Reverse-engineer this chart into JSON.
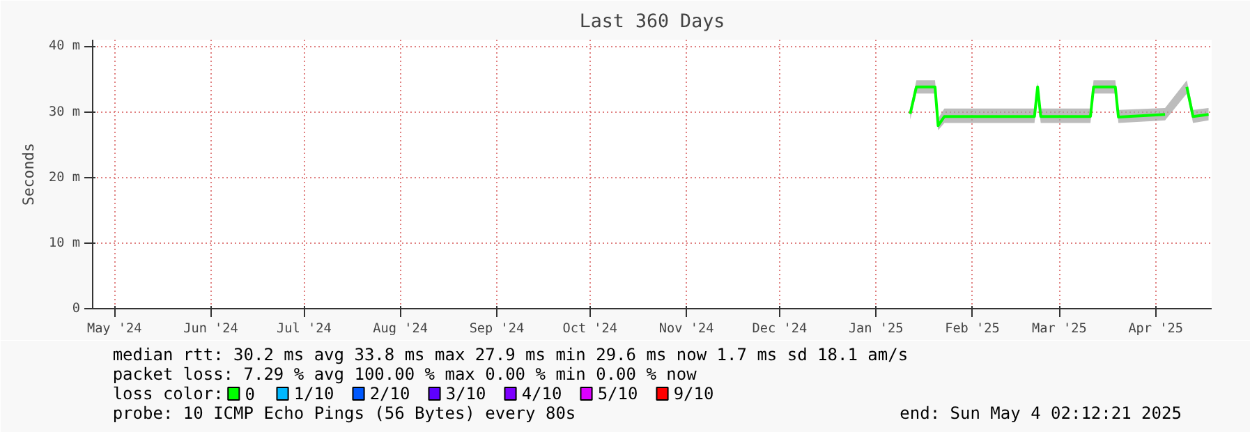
{
  "chart_data": {
    "type": "line",
    "title": "Last 360 Days",
    "ylabel": "Seconds",
    "x": [
      "2025-01-27",
      "2025-01-29",
      "2025-02-04",
      "2025-02-05",
      "2025-02-07",
      "2025-02-24",
      "2025-02-26",
      "2025-03-08",
      "2025-03-09",
      "2025-03-10",
      "2025-03-26",
      "2025-03-27",
      "2025-04-03",
      "2025-04-04",
      "2025-04-19",
      "2025-04-22",
      "2025-04-26",
      "2025-04-28",
      "2025-05-03"
    ],
    "series": [
      {
        "name": "0",
        "color": "#00ff00",
        "values": [
          29.7,
          33.8,
          33.8,
          27.9,
          29.3,
          29.3,
          29.3,
          29.3,
          33.8,
          29.3,
          29.3,
          33.8,
          33.8,
          29.2,
          29.6,
          null,
          33.8,
          29.3,
          29.6
        ],
        "lower": [
          28.8,
          32.8,
          32.8,
          27.2,
          28.3,
          28.3,
          28.3,
          28.3,
          32.5,
          28.3,
          28.3,
          32.8,
          32.8,
          28.3,
          28.7,
          null,
          32.8,
          28.3,
          28.7
        ],
        "upper": [
          30.5,
          34.8,
          34.8,
          29.0,
          30.5,
          30.5,
          30.5,
          30.5,
          34.5,
          30.5,
          30.5,
          34.8,
          34.8,
          30.3,
          30.6,
          null,
          34.8,
          30.3,
          30.6
        ]
      },
      {
        "name": "1/10",
        "color": "#00b8ff",
        "values": [
          null,
          null,
          null,
          null,
          null,
          null,
          null,
          null,
          null,
          null,
          null,
          null,
          null,
          null,
          null,
          null,
          null,
          null,
          null
        ]
      },
      {
        "name": "2/10",
        "color": "#0059ff",
        "values": [
          null,
          null,
          null,
          null,
          null,
          null,
          null,
          null,
          null,
          null,
          null,
          null,
          null,
          null,
          null,
          null,
          null,
          null,
          null
        ]
      },
      {
        "name": "3/10",
        "color": "#5e00ff",
        "values": [
          null,
          null,
          null,
          null,
          null,
          null,
          null,
          null,
          null,
          null,
          null,
          null,
          null,
          null,
          null,
          null,
          null,
          null,
          null
        ]
      },
      {
        "name": "4/10",
        "color": "#7e00ff",
        "values": [
          null,
          null,
          null,
          null,
          null,
          null,
          null,
          null,
          null,
          null,
          null,
          null,
          null,
          null,
          null,
          null,
          null,
          null,
          null
        ]
      },
      {
        "name": "5/10",
        "color": "#dd00ff",
        "values": [
          null,
          null,
          null,
          null,
          null,
          null,
          null,
          null,
          null,
          null,
          null,
          null,
          null,
          null,
          null,
          null,
          null,
          null,
          null
        ]
      },
      {
        "name": "9/10",
        "color": "#ff0000",
        "values": [
          null,
          null,
          null,
          null,
          null,
          null,
          null,
          null,
          null,
          null,
          null,
          null,
          null,
          null,
          null,
          null,
          null,
          null,
          null
        ]
      }
    ],
    "legend_title": "loss color:",
    "legend": "bottom",
    "xlim": [
      "2024-05-09",
      "2025-05-04"
    ],
    "xticks": [
      {
        "value": "2024-05-16",
        "label": "May '24"
      },
      {
        "value": "2024-06-16",
        "label": "Jun '24"
      },
      {
        "value": "2024-07-16",
        "label": "Jul '24"
      },
      {
        "value": "2024-08-16",
        "label": "Aug '24"
      },
      {
        "value": "2024-09-16",
        "label": "Sep '24"
      },
      {
        "value": "2024-10-16",
        "label": "Oct '24"
      },
      {
        "value": "2024-11-16",
        "label": "Nov '24"
      },
      {
        "value": "2024-12-16",
        "label": "Dec '24"
      },
      {
        "value": "2025-01-16",
        "label": "Jan '25"
      },
      {
        "value": "2025-02-16",
        "label": "Feb '25"
      },
      {
        "value": "2025-03-16",
        "label": "Mar '25"
      },
      {
        "value": "2025-04-16",
        "label": "Apr '25"
      }
    ],
    "ylim": [
      0,
      41
    ],
    "yticks": [
      {
        "value": 0,
        "label": "0"
      },
      {
        "value": 10,
        "label": "10 m"
      },
      {
        "value": 20,
        "label": "20 m"
      },
      {
        "value": 30,
        "label": "30 m"
      },
      {
        "value": 40,
        "label": "40 m"
      }
    ],
    "grid": true,
    "line_style": "solid",
    "marker": "none",
    "annotations": [
      "median rtt:  30.2 ms avg  33.8 ms max  27.9 ms min  29.6 ms now  1.7 ms sd  18.1   am/s",
      "packet loss: 7.29 % avg  100.00 % max  0.00 % min  0.00 % now",
      "probe:       10 ICMP Echo Pings (56 Bytes) every 80s",
      "end: Sun May  4 02:12:21 2025"
    ]
  }
}
